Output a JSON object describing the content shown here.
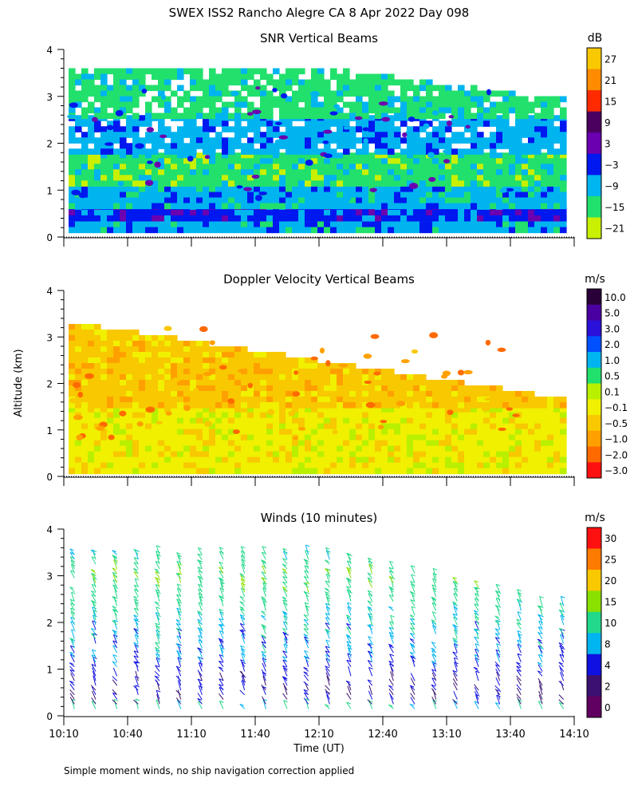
{
  "page": {
    "title": "SWEX ISS2 Rancho Alegre CA    8 Apr 2022 Day 098",
    "ylabel": "Altitude (km)",
    "xlabel": "Time (UT)",
    "footnote": "Simple moment winds, no ship navigation correction applied"
  },
  "chart_data": [
    {
      "type": "heatmap",
      "title": "SNR Vertical Beams",
      "ylabel": "Altitude (km)",
      "ylim": [
        0,
        4
      ],
      "yticks": [
        "0",
        "1",
        "2",
        "3",
        "4"
      ],
      "x_start_min": 0,
      "x_end_min": 240,
      "colorbar": {
        "unit": "dB",
        "tick_labels": [
          "27",
          "21",
          "15",
          "9",
          "3",
          "−3",
          "−9",
          "−15",
          "−21"
        ],
        "colors": [
          "#f8c800",
          "#ff8c00",
          "#ff2a00",
          "#4b0060",
          "#6a00b0",
          "#0018f0",
          "#00b4f0",
          "#22e06c",
          "#c8f000"
        ]
      },
      "bands": [
        {
          "from": 0.15,
          "to": 0.45,
          "level": "−9"
        },
        {
          "from": 0.45,
          "to": 0.7,
          "level": "−3"
        },
        {
          "from": 0.7,
          "to": 1.2,
          "level": "−9"
        },
        {
          "from": 1.2,
          "to": 1.8,
          "level": "−15"
        },
        {
          "from": 1.8,
          "to": 2.6,
          "level": "−9"
        },
        {
          "from": 2.6,
          "to": 3.6,
          "level": "−15"
        }
      ]
    },
    {
      "type": "heatmap",
      "title": "Doppler Velocity Vertical Beams",
      "ylabel": "Altitude (km)",
      "ylim": [
        0,
        4
      ],
      "yticks": [
        "0",
        "1",
        "2",
        "3",
        "4"
      ],
      "colorbar": {
        "unit": "m/s",
        "tick_labels": [
          "10.0",
          "5.0",
          "3.0",
          "2.0",
          "1.0",
          "0.5",
          "0.1",
          "−0.1",
          "−0.5",
          "−1.0",
          "−2.0",
          "−3.0"
        ],
        "colors": [
          "#2a0038",
          "#4a00a0",
          "#2a10d8",
          "#0050ff",
          "#00b4f0",
          "#22e06c",
          "#b8f000",
          "#f0f000",
          "#f8c800",
          "#ffa000",
          "#ff6a00",
          "#ff1010"
        ]
      },
      "bands": [
        {
          "from": 0.1,
          "to": 1.5,
          "level": "−0.1"
        },
        {
          "from": 1.5,
          "to": 3.4,
          "level": "−0.5"
        }
      ]
    },
    {
      "type": "wind_barbs",
      "title": "Winds (10 minutes)",
      "ylabel": "Altitude (km)",
      "xlabel": "Time (UT)",
      "ylim": [
        0,
        4
      ],
      "yticks": [
        "0",
        "1",
        "2",
        "3",
        "4"
      ],
      "x_tick_labels": [
        "10:10",
        "10:40",
        "11:10",
        "11:40",
        "12:10",
        "12:40",
        "13:10",
        "13:40",
        "14:10"
      ],
      "x_tick_minutes": [
        0,
        30,
        60,
        90,
        120,
        150,
        180,
        210,
        240
      ],
      "profile_times_min": [
        5,
        15,
        25,
        35,
        45,
        55,
        65,
        75,
        85,
        95,
        105,
        115,
        125,
        135,
        145,
        155,
        165,
        175,
        185,
        195,
        205,
        215,
        225,
        235
      ],
      "colorbar": {
        "unit": "m/s",
        "tick_labels": [
          "30",
          "25",
          "20",
          "15",
          "10",
          "8",
          "4",
          "2",
          "0"
        ],
        "colors": [
          "#ff1010",
          "#ff7a00",
          "#f8c800",
          "#8ae000",
          "#22d88a",
          "#00b4f0",
          "#1010e0",
          "#3a1070",
          "#600060"
        ]
      },
      "speed_profile_km": [
        {
          "alt": 0.2,
          "speed": 4
        },
        {
          "alt": 0.7,
          "speed": 4
        },
        {
          "alt": 1.2,
          "speed": 8
        },
        {
          "alt": 2.0,
          "speed": 10
        },
        {
          "alt": 3.0,
          "speed": 15
        },
        {
          "alt": 3.4,
          "speed": 10
        }
      ]
    }
  ]
}
